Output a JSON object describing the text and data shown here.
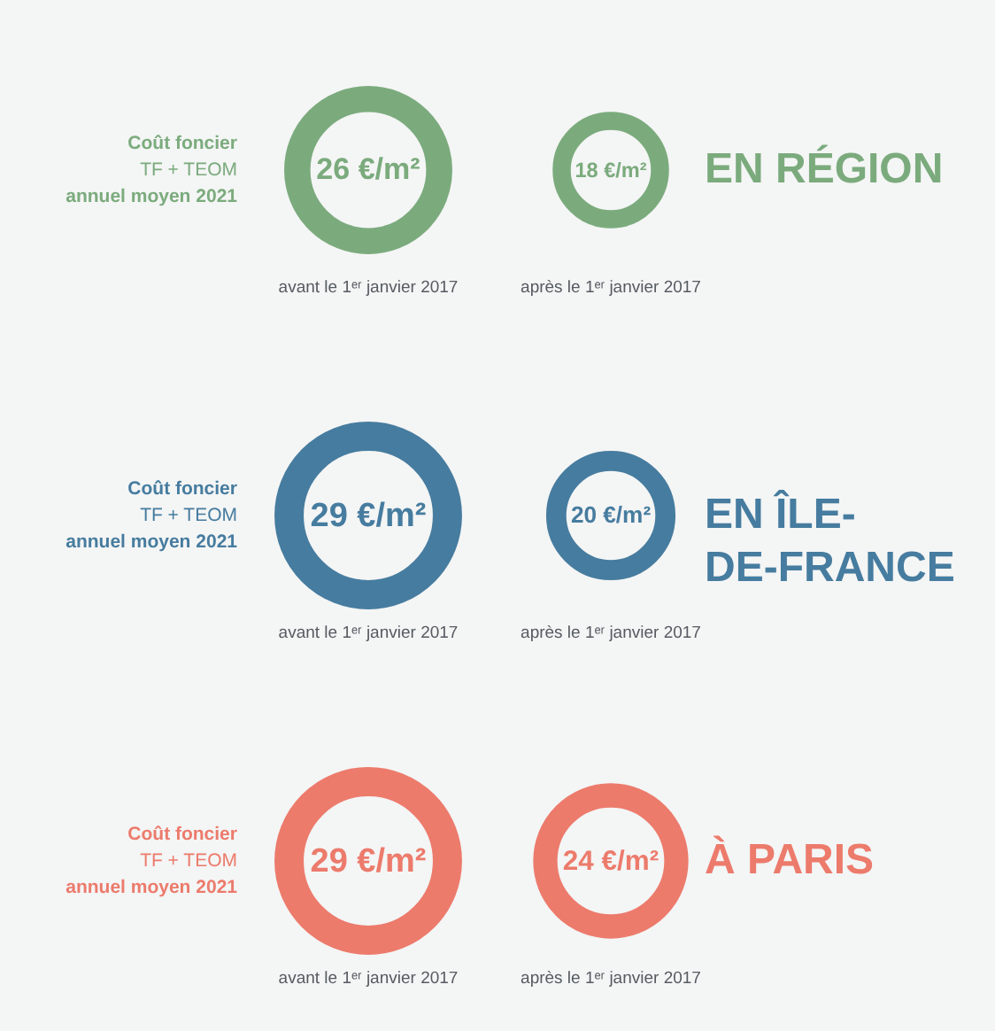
{
  "chart_data": [
    {
      "type": "other",
      "title": "EN RÉGION",
      "annotations": [
        "Coût foncier",
        "TF + TEOM",
        "annuel moyen 2021"
      ],
      "categories": [
        "avant le 1ᵉʳ janvier 2017",
        "après le 1ᵉʳ janvier 2017"
      ],
      "values": [
        26,
        18
      ],
      "value_labels": [
        "26 €/m²",
        "18 €/m²"
      ],
      "color": "#7bab7d"
    },
    {
      "type": "other",
      "title": "EN ÎLE-DE-FRANCE",
      "annotations": [
        "Coût foncier",
        "TF + TEOM",
        "annuel moyen 2021"
      ],
      "categories": [
        "avant le 1ᵉʳ janvier 2017",
        "après le 1ᵉʳ janvier 2017"
      ],
      "values": [
        29,
        20
      ],
      "value_labels": [
        "29 €/m²",
        "20 €/m²"
      ],
      "color": "#467c9f"
    },
    {
      "type": "other",
      "title": "À PARIS",
      "annotations": [
        "Coût foncier",
        "TF + TEOM",
        "annuel moyen 2021"
      ],
      "categories": [
        "avant le 1ᵉʳ janvier 2017",
        "après le 1ᵉʳ janvier 2017"
      ],
      "values": [
        29,
        24
      ],
      "value_labels": [
        "29 €/m²",
        "24 €/m²"
      ],
      "color": "#ec7b6c"
    }
  ]
}
